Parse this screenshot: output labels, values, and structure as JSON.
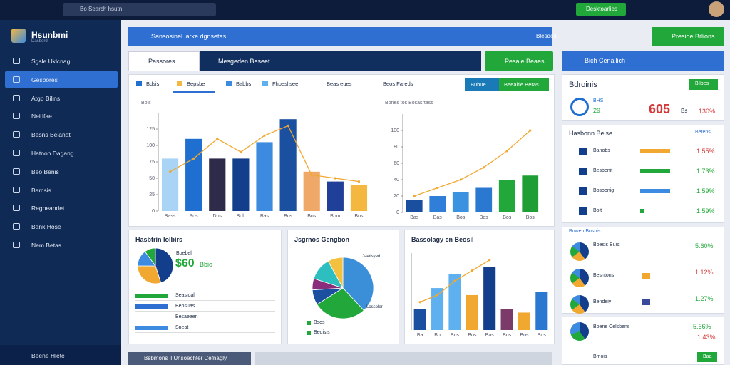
{
  "topbar": {
    "search": "Bo Search hsutn",
    "button": "Desktoarlies"
  },
  "sidebar": {
    "brand": "Hsunbmi",
    "brand_sub": "Dasbord",
    "menu": [
      "Sgsle Uklcnag",
      "Gesbores",
      "Atgp Bilins",
      "Nei lfae",
      "Besns Belanat",
      "Hatnon Dagang",
      "Beo Benis",
      "Bamsis",
      "Regpeandet",
      "Bank Hose",
      "Nem Betas"
    ],
    "footer": "Beene Hlete"
  },
  "header": {
    "title": "Sansosinel larke dgnsetas",
    "status": "Blesdes",
    "button": "Preside Brlions"
  },
  "toolbar": {
    "tab1": "Passores",
    "tab2": "Mesgeden Beseet",
    "button": "Pesale Beaes"
  },
  "panel": {
    "tabs": [
      "Bdsis",
      "Bepsbe",
      "Babbs",
      "Fhoeslisee",
      "Beas eues",
      "Beos Fareds"
    ],
    "btn1": "Bubue",
    "btn2": "Beealtie Beras"
  },
  "chart_left": {
    "type": "bar",
    "title": "Bols",
    "categories": [
      "Bass",
      "Pos",
      "Dos",
      "Bob",
      "Bas",
      "Bos",
      "Bos",
      "Bom",
      "Bos"
    ],
    "values": [
      80,
      110,
      80,
      80,
      105,
      140,
      60,
      45,
      40
    ],
    "colors": [
      "#a9d4f5",
      "#1e6fd0",
      "#2e2a4a",
      "#123e8c",
      "#3d8be0",
      "#1b4fa0",
      "#f0a868",
      "#1f3f99",
      "#f4b740"
    ],
    "line": [
      60,
      80,
      110,
      90,
      115,
      130,
      55,
      50,
      45
    ],
    "line_color": "#f0a830",
    "ylim": [
      0,
      150
    ],
    "yticks": [
      0,
      25,
      50,
      75,
      100,
      125
    ]
  },
  "chart_right": {
    "type": "bar",
    "title": "Bones tos Bosasrtass",
    "categories": [
      "Bas",
      "Bas",
      "Bos",
      "Bos",
      "Bos",
      "Bos"
    ],
    "values": [
      15,
      20,
      25,
      30,
      40,
      45
    ],
    "colors": [
      "#1a4fa0",
      "#2f7fd8",
      "#3a92e0",
      "#2a78d0",
      "#22a83a",
      "#1f9e36"
    ],
    "line": [
      20,
      30,
      40,
      55,
      75,
      100
    ],
    "line_color": "#f0a830",
    "ylim": [
      0,
      120
    ],
    "yticks": [
      0,
      20,
      40,
      60,
      80,
      100
    ]
  },
  "card_pie": {
    "title": "Hasbtrin lolbirs",
    "big": "$60",
    "unit": "Bbio",
    "sub": "Boebel",
    "pie": [
      45,
      30,
      15,
      10
    ],
    "colors": [
      "#123e8c",
      "#f0a830",
      "#3d8be0",
      "#22a83a"
    ],
    "rows": [
      "Seasioal",
      "Bepsuas",
      "Besaeaen",
      "Sneat"
    ]
  },
  "pie_chart": {
    "title": "Jsgrnos Gengbon",
    "pie": [
      38,
      28,
      8,
      6,
      12,
      8
    ],
    "colors": [
      "#3a8fd8",
      "#22a83a",
      "#1b4fa0",
      "#8a2d7a",
      "#2dbfbf",
      "#f4c040"
    ],
    "labels": [
      "Jaetisyed",
      "Lossoler"
    ],
    "legend": [
      "Bsos",
      "Beoisis"
    ]
  },
  "chart_bottom": {
    "type": "bar",
    "title": "Bassolagy cn Beosil",
    "categories": [
      "Ba",
      "Bo",
      "Bos",
      "Bos",
      "Bas",
      "Bos",
      "Bos",
      "Bos"
    ],
    "values": [
      30,
      60,
      80,
      50,
      90,
      30,
      25,
      55
    ],
    "colors": [
      "#1b4fa0",
      "#5fb0ef",
      "#5fb0ef",
      "#f0a830",
      "#123e8c",
      "#7a3a6a",
      "#f0a830",
      "#2a78d0"
    ],
    "line": [
      40,
      50,
      70,
      85,
      100,
      null,
      null,
      null
    ],
    "line_color": "#f0a830",
    "ylim": [
      0,
      110
    ],
    "yticks": []
  },
  "bottombar": {
    "title": "Bsbmons il Unsoechter Cefnagly"
  },
  "right": {
    "title": "Bich Cenallich",
    "card_title": "Bdroinis",
    "card_btn": "Bilbes",
    "stat_a": "BHS",
    "stat_b": "29",
    "big": "605",
    "big_unit": "Bs",
    "big_pct": "130%",
    "sec1": "Hasbonn Belse",
    "sec1_link": "Betens",
    "rows1": [
      [
        "Banobs",
        "1.55%"
      ],
      [
        "Besbenit",
        "1.73%"
      ],
      [
        "Bosoonig",
        "1.59%"
      ],
      [
        "Bolt",
        "1.59%"
      ]
    ],
    "sec2": "Bowen Bosnis",
    "rows2": [
      [
        "Boesis Buis",
        "5.60%"
      ],
      [
        "Besntons",
        "1.12%"
      ],
      [
        "Bendeiy",
        "1.27%"
      ]
    ],
    "sec3": "Boene Celsbens",
    "sec3_a": "5.66%",
    "sec3_b": "1.43%",
    "foot": "Bmois",
    "foot_btn": "Baa"
  }
}
